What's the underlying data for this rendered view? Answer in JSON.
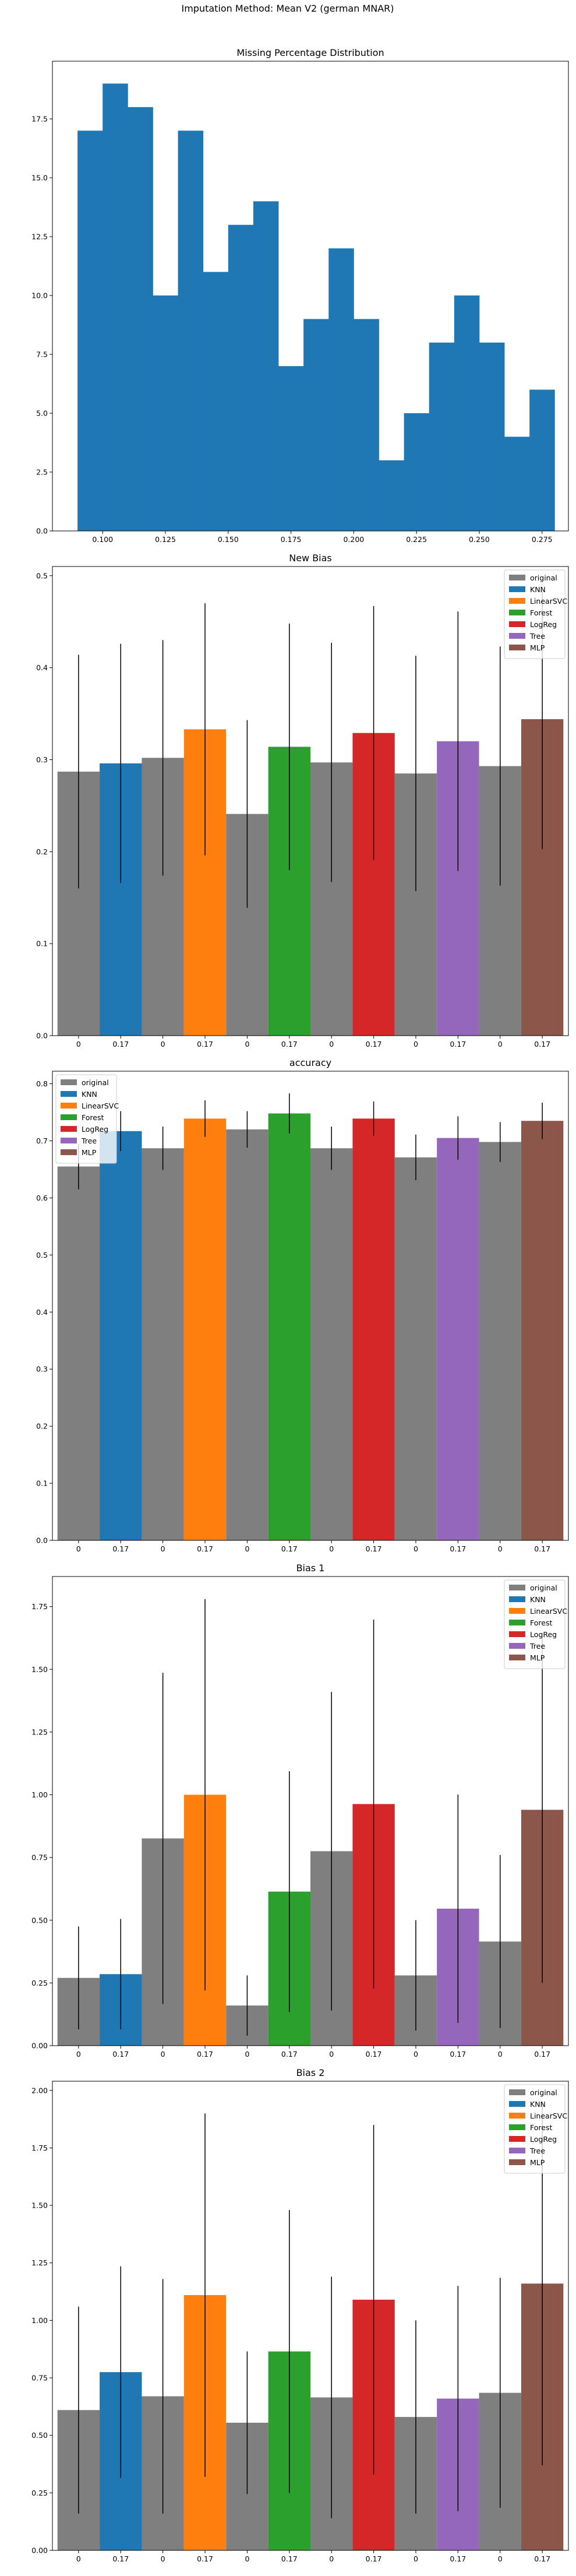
{
  "figure": {
    "suptitle": "Imputation Method: Mean V2 (german MNAR)"
  },
  "colors": {
    "original": "#7f7f7f",
    "KNN": "#1f77b4",
    "LinearSVC": "#ff7f0e",
    "Forest": "#2ca02c",
    "LogReg": "#d62728",
    "Tree": "#9467bd",
    "MLP": "#8c564b",
    "hist": "#1f77b4"
  },
  "chart_data": [
    {
      "type": "histogram",
      "title": "Missing Percentage Distribution",
      "xlabel": "",
      "ylabel": "",
      "bin_start": 0.09,
      "bin_width": 0.01,
      "values": [
        17,
        19,
        18,
        10,
        17,
        11,
        13,
        14,
        7,
        9,
        12,
        9,
        3,
        5,
        8,
        10,
        8,
        4,
        6
      ],
      "xlim": [
        0.08,
        0.2855
      ],
      "ylim": [
        0,
        19.95
      ],
      "xticks": [
        0.1,
        0.125,
        0.15,
        0.175,
        0.2,
        0.225,
        0.25,
        0.275
      ],
      "xtick_labels": [
        "0.100",
        "0.125",
        "0.150",
        "0.175",
        "0.200",
        "0.225",
        "0.250",
        "0.275"
      ],
      "yticks": [
        0,
        2.5,
        5,
        7.5,
        10,
        12.5,
        15,
        17.5
      ],
      "ytick_labels": [
        "0.0",
        "2.5",
        "5.0",
        "7.5",
        "10.0",
        "12.5",
        "15.0",
        "17.5"
      ],
      "grid": false
    },
    {
      "type": "bar",
      "title": "New Bias",
      "xlabel": "",
      "ylabel": "",
      "categories": [
        "0",
        "0.17"
      ],
      "ylim": [
        0,
        0.51
      ],
      "yticks": [
        0,
        0.1,
        0.2,
        0.3,
        0.4,
        0.5
      ],
      "ytick_labels": [
        "0.0",
        "0.1",
        "0.2",
        "0.3",
        "0.4",
        "0.5"
      ],
      "legend_position": "top-right",
      "legend": [
        "original",
        "KNN",
        "LinearSVC",
        "Forest",
        "LogReg",
        "Tree",
        "MLP"
      ],
      "groups": [
        {
          "method": "KNN",
          "original": 0.287,
          "original_err": 0.127,
          "imputed": 0.296,
          "imputed_err": 0.13
        },
        {
          "method": "LinearSVC",
          "original": 0.302,
          "original_err": 0.128,
          "imputed": 0.333,
          "imputed_err": 0.137
        },
        {
          "method": "Forest",
          "original": 0.241,
          "original_err": 0.102,
          "imputed": 0.314,
          "imputed_err": 0.134
        },
        {
          "method": "LogReg",
          "original": 0.297,
          "original_err": 0.13,
          "imputed": 0.329,
          "imputed_err": 0.138
        },
        {
          "method": "Tree",
          "original": 0.285,
          "original_err": 0.128,
          "imputed": 0.32,
          "imputed_err": 0.141
        },
        {
          "method": "MLP",
          "original": 0.293,
          "original_err": 0.13,
          "imputed": 0.344,
          "imputed_err": 0.141
        }
      ]
    },
    {
      "type": "bar",
      "title": "accuracy",
      "xlabel": "",
      "ylabel": "",
      "categories": [
        "0",
        "0.17"
      ],
      "ylim": [
        0,
        0.822
      ],
      "yticks": [
        0,
        0.1,
        0.2,
        0.3,
        0.4,
        0.5,
        0.6,
        0.7,
        0.8
      ],
      "ytick_labels": [
        "0.0",
        "0.1",
        "0.2",
        "0.3",
        "0.4",
        "0.5",
        "0.6",
        "0.7",
        "0.8"
      ],
      "legend_position": "top-left",
      "legend": [
        "original",
        "KNN",
        "LinearSVC",
        "Forest",
        "LogReg",
        "Tree",
        "MLP"
      ],
      "groups": [
        {
          "method": "KNN",
          "original": 0.655,
          "original_err": 0.04,
          "imputed": 0.717,
          "imputed_err": 0.035
        },
        {
          "method": "LinearSVC",
          "original": 0.687,
          "original_err": 0.038,
          "imputed": 0.739,
          "imputed_err": 0.032
        },
        {
          "method": "Forest",
          "original": 0.72,
          "original_err": 0.032,
          "imputed": 0.748,
          "imputed_err": 0.035
        },
        {
          "method": "LogReg",
          "original": 0.687,
          "original_err": 0.038,
          "imputed": 0.739,
          "imputed_err": 0.03
        },
        {
          "method": "Tree",
          "original": 0.671,
          "original_err": 0.04,
          "imputed": 0.705,
          "imputed_err": 0.038
        },
        {
          "method": "MLP",
          "original": 0.698,
          "original_err": 0.035,
          "imputed": 0.735,
          "imputed_err": 0.032
        }
      ]
    },
    {
      "type": "bar",
      "title": "Bias 1",
      "xlabel": "",
      "ylabel": "",
      "categories": [
        "0",
        "0.17"
      ],
      "ylim": [
        0,
        1.87
      ],
      "yticks": [
        0,
        0.25,
        0.5,
        0.75,
        1.0,
        1.25,
        1.5,
        1.75
      ],
      "ytick_labels": [
        "0.00",
        "0.25",
        "0.50",
        "0.75",
        "1.00",
        "1.25",
        "1.50",
        "1.75"
      ],
      "legend_position": "top-right",
      "legend": [
        "original",
        "KNN",
        "LinearSVC",
        "Forest",
        "LogReg",
        "Tree",
        "MLP"
      ],
      "groups": [
        {
          "method": "KNN",
          "original": 0.27,
          "original_err": 0.205,
          "imputed": 0.285,
          "imputed_err": 0.22
        },
        {
          "method": "LinearSVC",
          "original": 0.826,
          "original_err": 0.66,
          "imputed": 1.0,
          "imputed_err": 0.78
        },
        {
          "method": "Forest",
          "original": 0.16,
          "original_err": 0.12,
          "imputed": 0.614,
          "imputed_err": 0.48
        },
        {
          "method": "LogReg",
          "original": 0.775,
          "original_err": 0.635,
          "imputed": 0.963,
          "imputed_err": 0.735
        },
        {
          "method": "Tree",
          "original": 0.28,
          "original_err": 0.22,
          "imputed": 0.546,
          "imputed_err": 0.455
        },
        {
          "method": "MLP",
          "original": 0.415,
          "original_err": 0.345,
          "imputed": 0.94,
          "imputed_err": 0.69
        }
      ]
    },
    {
      "type": "bar",
      "title": "Bias 2",
      "xlabel": "",
      "ylabel": "",
      "categories": [
        "0",
        "0.17"
      ],
      "ylim": [
        0,
        2.04
      ],
      "yticks": [
        0,
        0.25,
        0.5,
        0.75,
        1.0,
        1.25,
        1.5,
        1.75,
        2.0
      ],
      "ytick_labels": [
        "0.00",
        "0.25",
        "0.50",
        "0.75",
        "1.00",
        "1.25",
        "1.50",
        "1.75",
        "2.00"
      ],
      "legend_position": "top-right",
      "legend": [
        "original",
        "KNN",
        "LinearSVC",
        "Forest",
        "LogReg",
        "Tree",
        "MLP"
      ],
      "groups": [
        {
          "method": "KNN",
          "original": 0.61,
          "original_err": 0.45,
          "imputed": 0.775,
          "imputed_err": 0.46
        },
        {
          "method": "LinearSVC",
          "original": 0.67,
          "original_err": 0.51,
          "imputed": 1.11,
          "imputed_err": 0.79
        },
        {
          "method": "Forest",
          "original": 0.555,
          "original_err": 0.31,
          "imputed": 0.865,
          "imputed_err": 0.615
        },
        {
          "method": "LogReg",
          "original": 0.665,
          "original_err": 0.525,
          "imputed": 1.09,
          "imputed_err": 0.76
        },
        {
          "method": "Tree",
          "original": 0.58,
          "original_err": 0.42,
          "imputed": 0.66,
          "imputed_err": 0.49
        },
        {
          "method": "MLP",
          "original": 0.685,
          "original_err": 0.5,
          "imputed": 1.16,
          "imputed_err": 0.79
        }
      ]
    }
  ]
}
